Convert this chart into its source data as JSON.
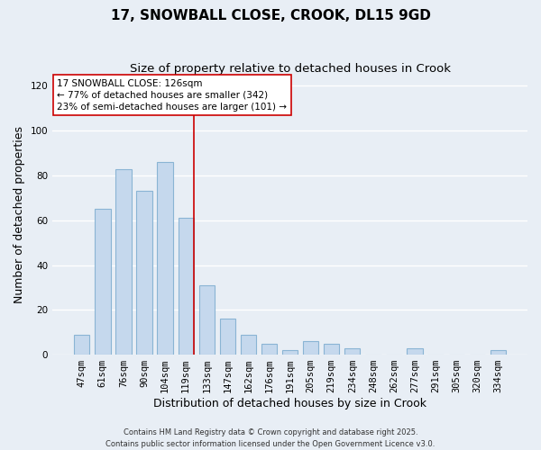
{
  "title": "17, SNOWBALL CLOSE, CROOK, DL15 9GD",
  "subtitle": "Size of property relative to detached houses in Crook",
  "xlabel": "Distribution of detached houses by size in Crook",
  "ylabel": "Number of detached properties",
  "categories": [
    "47sqm",
    "61sqm",
    "76sqm",
    "90sqm",
    "104sqm",
    "119sqm",
    "133sqm",
    "147sqm",
    "162sqm",
    "176sqm",
    "191sqm",
    "205sqm",
    "219sqm",
    "234sqm",
    "248sqm",
    "262sqm",
    "277sqm",
    "291sqm",
    "305sqm",
    "320sqm",
    "334sqm"
  ],
  "values": [
    9,
    65,
    83,
    73,
    86,
    61,
    31,
    16,
    9,
    5,
    2,
    6,
    5,
    3,
    0,
    0,
    3,
    0,
    0,
    0,
    2
  ],
  "bar_color": "#c5d8ed",
  "bar_edge_color": "#8ab4d4",
  "ylim": [
    0,
    125
  ],
  "yticks": [
    0,
    20,
    40,
    60,
    80,
    100,
    120
  ],
  "vline_color": "#cc0000",
  "vline_index": 5,
  "annotation_title": "17 SNOWBALL CLOSE: 126sqm",
  "annotation_line1": "← 77% of detached houses are smaller (342)",
  "annotation_line2": "23% of semi-detached houses are larger (101) →",
  "annotation_box_facecolor": "#ffffff",
  "annotation_box_edgecolor": "#cc0000",
  "footer1": "Contains HM Land Registry data © Crown copyright and database right 2025.",
  "footer2": "Contains public sector information licensed under the Open Government Licence v3.0.",
  "background_color": "#e8eef5",
  "grid_color": "#ffffff",
  "title_fontsize": 11,
  "subtitle_fontsize": 9.5,
  "xlabel_fontsize": 9,
  "ylabel_fontsize": 9,
  "tick_fontsize": 7.5,
  "annotation_fontsize": 7.5,
  "footer_fontsize": 6
}
